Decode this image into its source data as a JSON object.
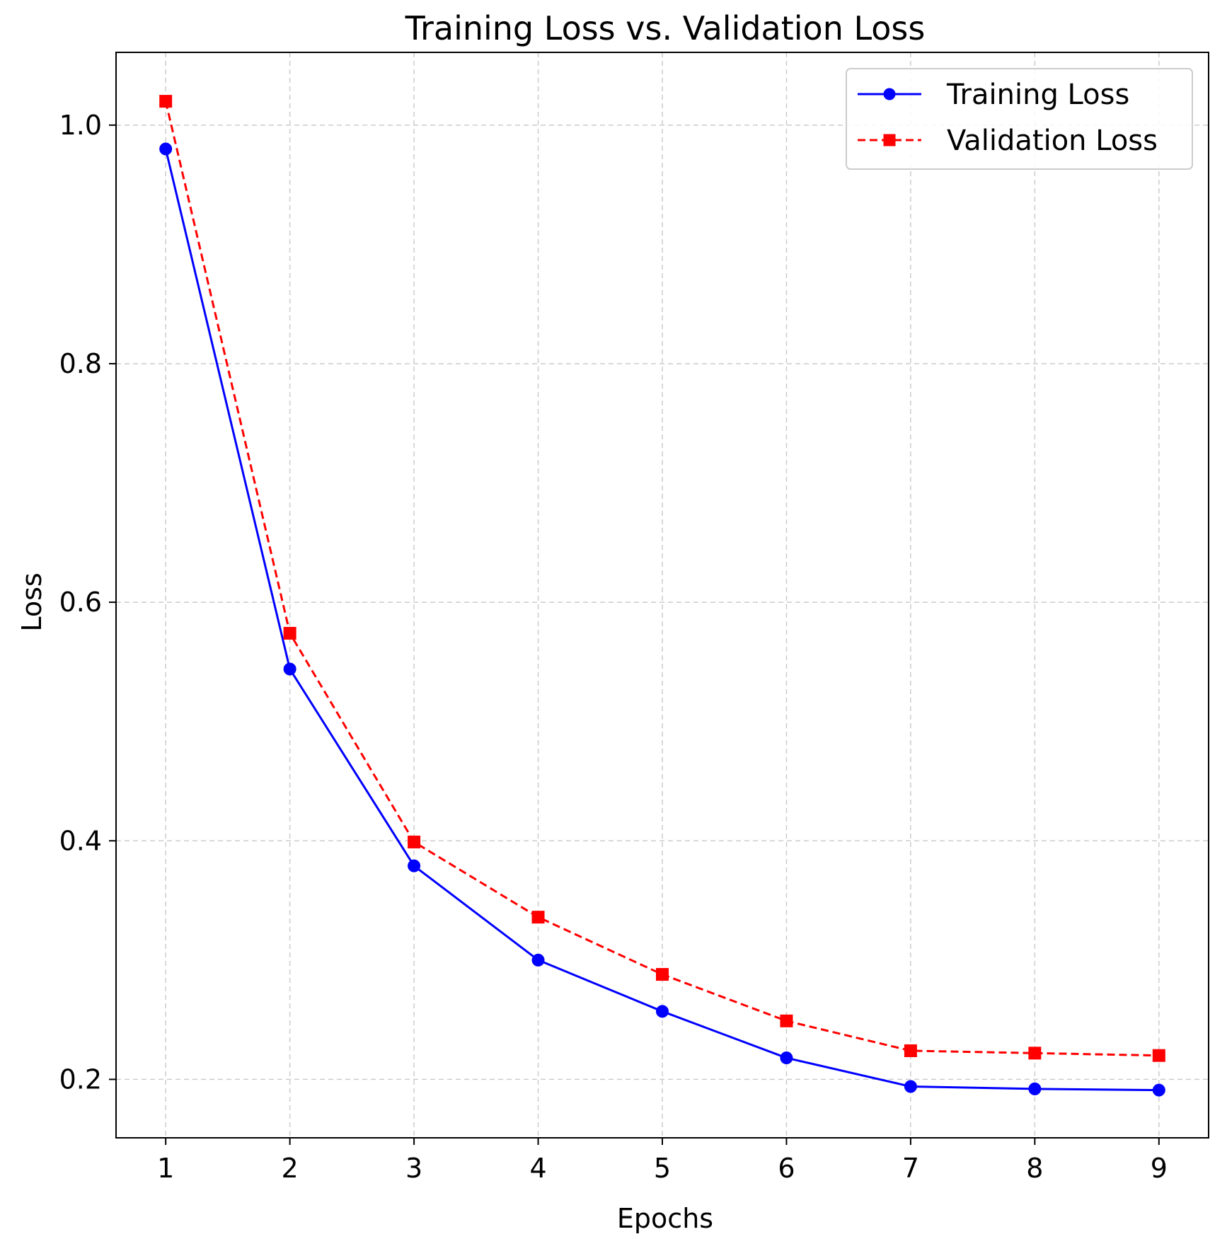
{
  "chart_data": {
    "type": "line",
    "title": "Training Loss vs. Validation Loss",
    "xlabel": "Epochs",
    "ylabel": "Loss",
    "x": [
      1,
      2,
      3,
      4,
      5,
      6,
      7,
      8,
      9
    ],
    "xticks": [
      "1",
      "2",
      "3",
      "4",
      "5",
      "6",
      "7",
      "8",
      "9"
    ],
    "yticks": [
      0.2,
      0.4,
      0.6,
      0.8,
      1.0
    ],
    "ytick_labels": [
      "0.2",
      "0.4",
      "0.6",
      "0.8",
      "1.0"
    ],
    "xlim": [
      0.6,
      9.4
    ],
    "ylim": [
      0.151,
      1.061
    ],
    "grid": true,
    "legend_position": "top-right",
    "series": [
      {
        "name": "Training Loss",
        "values": [
          0.98,
          0.544,
          0.379,
          0.3,
          0.257,
          0.218,
          0.194,
          0.192,
          0.191
        ],
        "color": "#0000ff",
        "line_style": "solid",
        "marker": "circle"
      },
      {
        "name": "Validation Loss",
        "values": [
          1.02,
          0.574,
          0.399,
          0.336,
          0.288,
          0.249,
          0.224,
          0.222,
          0.22
        ],
        "color": "#ff0000",
        "line_style": "dashed",
        "marker": "square"
      }
    ]
  }
}
